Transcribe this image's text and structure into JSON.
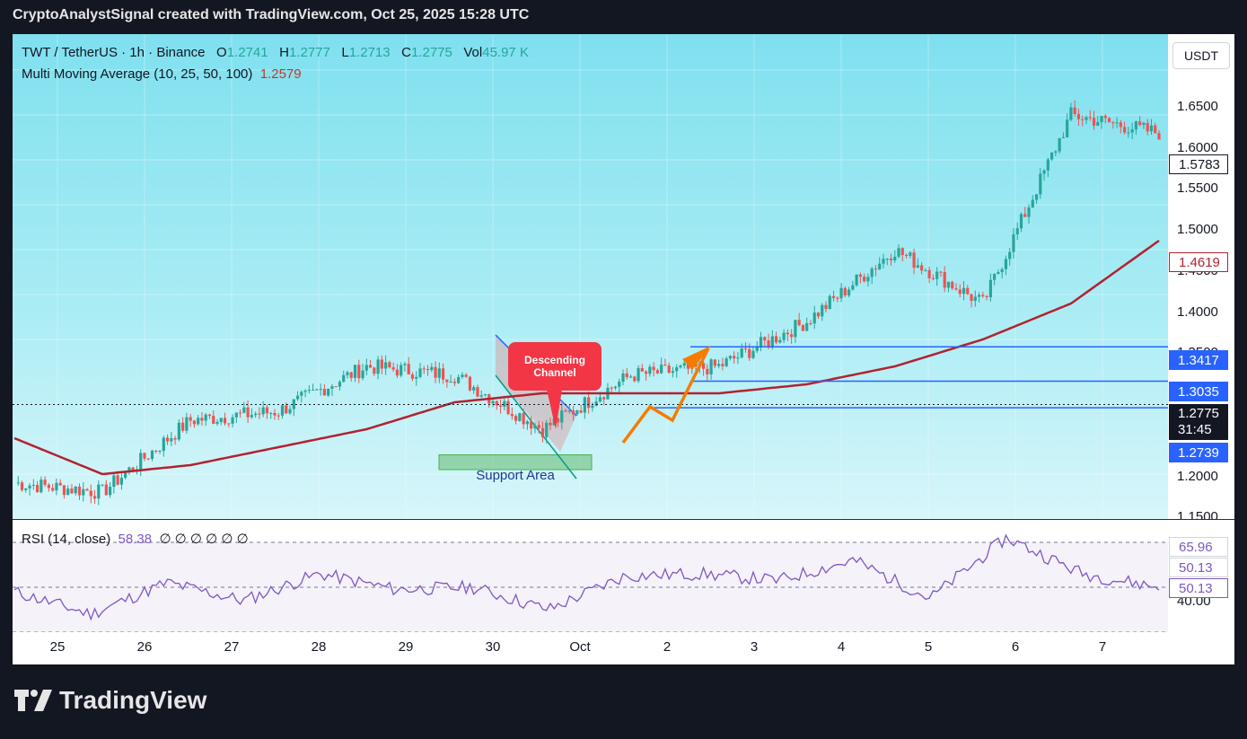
{
  "header": {
    "created_text": "CryptoAnalystSignal created with TradingView.com, Oct 25, 2025 15:28 UTC"
  },
  "legend": {
    "symbol": "TWT / TetherUS · 1h · Binance",
    "o_label": "O",
    "o": "1.2741",
    "h_label": "H",
    "h": "1.2777",
    "l_label": "L",
    "l": "1.2713",
    "c_label": "C",
    "c": "1.2775",
    "vol_label": "Vol",
    "vol": "45.97 K",
    "ma_label": "Multi Moving Average (10, 25, 50, 100)",
    "ma_value": "1.2579"
  },
  "rsi_legend": {
    "label": "RSI (14, close)",
    "value": "58.38",
    "extra": "∅ ∅ ∅ ∅ ∅ ∅"
  },
  "annotations": {
    "descending": "Descending Channel",
    "support": "Support Area"
  },
  "currency_button": "USDT",
  "price_labels": {
    "current_high": "1.5783",
    "ma": "1.4619",
    "resistance": "1.3417",
    "level2": "1.3035",
    "last": "1.2775",
    "countdown": "31:45",
    "level3": "1.2739"
  },
  "rsi_labels": {
    "upper": "65.96",
    "mid": "50.13",
    "ma": "50.13",
    "low": "40.00"
  },
  "y_ticks": [
    "1.6500",
    "1.6000",
    "1.5500",
    "1.5000",
    "1.4500",
    "1.4000",
    "1.3500",
    "1.2000",
    "1.1500"
  ],
  "x_ticks": [
    "25",
    "26",
    "27",
    "28",
    "29",
    "30",
    "Oct",
    "2",
    "3",
    "4",
    "5",
    "6",
    "7"
  ],
  "colors": {
    "up": "#26a69a",
    "down": "#ef5350",
    "ma": "#b2222f",
    "level": "#2962ff",
    "rsi": "#7e57c2",
    "arrow": "#f57c00"
  },
  "brand": "TradingView",
  "chart_data": {
    "type": "line",
    "title": "TWT / TetherUS · 1h · Binance",
    "xlabel": "",
    "ylabel": "",
    "x": [
      "25",
      "26",
      "27",
      "28",
      "29",
      "30",
      "Oct",
      "2",
      "3",
      "4",
      "5",
      "6",
      "7",
      "7.8"
    ],
    "series": [
      {
        "name": "TWT / TetherUS",
        "values": [
          1.19,
          1.18,
          1.26,
          1.27,
          1.32,
          1.31,
          1.25,
          1.31,
          1.32,
          1.37,
          1.45,
          1.39,
          1.6,
          1.58
        ]
      },
      {
        "name": "Multi Moving Average (10, 25, 50, 100)",
        "values": [
          1.24,
          1.2,
          1.21,
          1.23,
          1.25,
          1.28,
          1.29,
          1.29,
          1.29,
          1.3,
          1.32,
          1.35,
          1.39,
          1.46
        ]
      }
    ],
    "levels": [
      1.3417,
      1.3035,
      1.2739
    ],
    "ylim": [
      1.15,
      1.69
    ],
    "rsi": {
      "values": [
        48,
        38,
        52,
        44,
        56,
        49,
        50,
        40,
        55,
        56,
        53,
        62,
        45,
        72,
        56,
        50
      ],
      "ylim": [
        30,
        80
      ]
    }
  }
}
